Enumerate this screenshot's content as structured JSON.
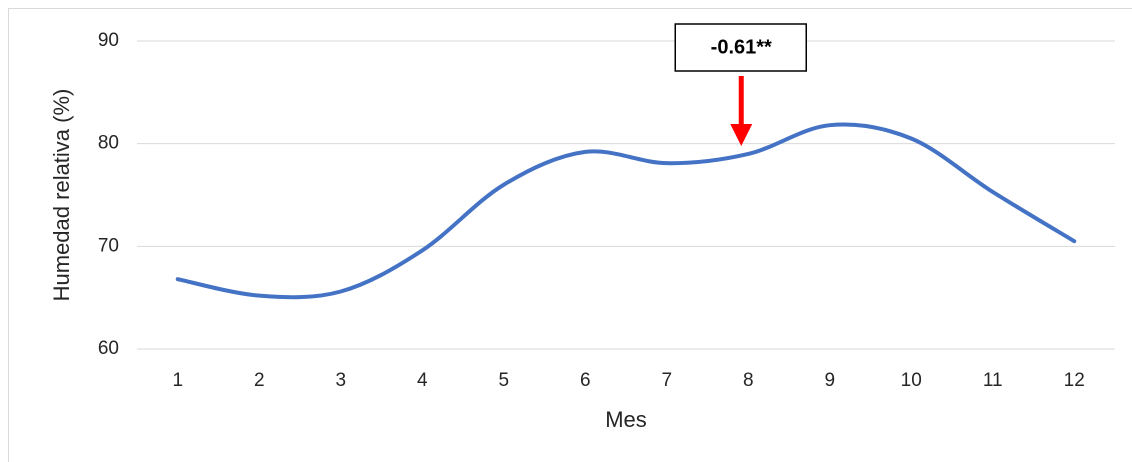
{
  "chart_data": {
    "type": "line",
    "x_label": "Mes",
    "y_label": "Humedad relativa (%)",
    "x": [
      1,
      2,
      3,
      4,
      5,
      6,
      7,
      8,
      9,
      10,
      11,
      12
    ],
    "xlim": [
      0.5,
      12.5
    ],
    "xticks": [
      1,
      2,
      3,
      4,
      5,
      6,
      7,
      8,
      9,
      10,
      11,
      12
    ],
    "ylim": [
      60,
      90
    ],
    "yticks": [
      60,
      70,
      80,
      90
    ],
    "grid": true,
    "series": [
      {
        "color": "#4472c4",
        "values": [
          66.8,
          65.2,
          65.6,
          69.6,
          76.0,
          79.2,
          78.1,
          79.0,
          81.8,
          80.5,
          75.3,
          70.5
        ]
      }
    ],
    "annotations": [
      {
        "text": "-0.61**",
        "x": 8
      }
    ]
  }
}
